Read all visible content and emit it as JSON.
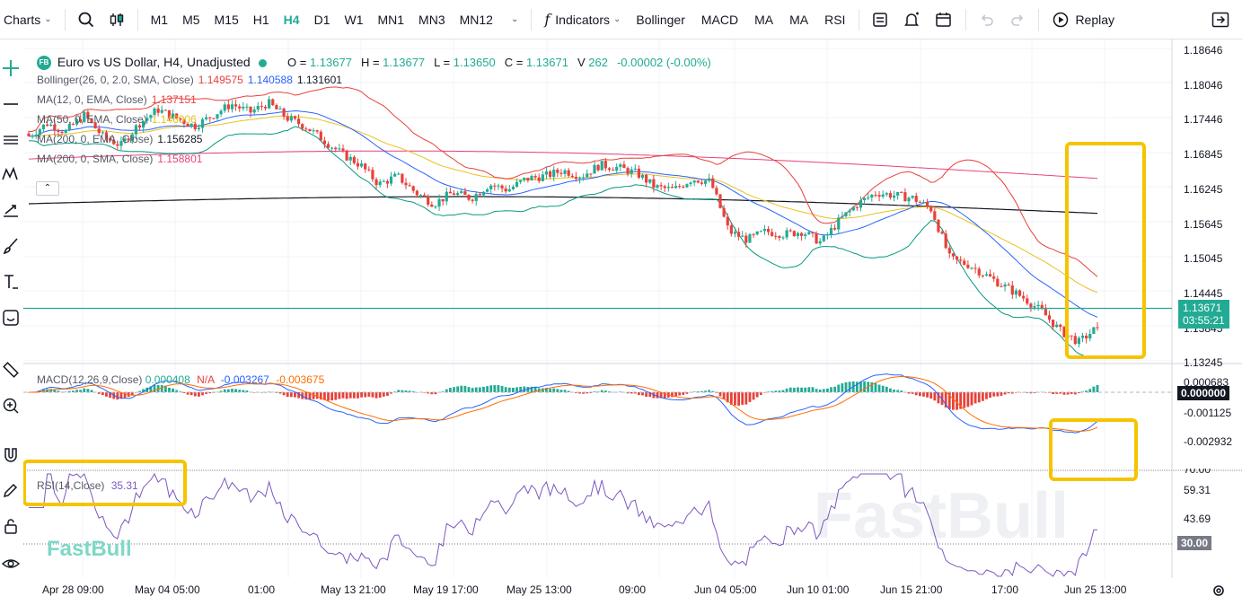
{
  "toolbar": {
    "charts_label": "Charts",
    "timeframes": [
      "M1",
      "M5",
      "M15",
      "H1",
      "H4",
      "D1",
      "W1",
      "MN1",
      "MN3",
      "MN12"
    ],
    "active_timeframe": "H4",
    "indicators_label": "Indicators",
    "indicator_shortcuts": [
      "Bollinger",
      "MACD",
      "MA",
      "MA",
      "RSI"
    ],
    "replay_label": "Replay"
  },
  "symbol": {
    "badge": "FB",
    "title": "Euro vs US Dollar, H4, Unadjusted",
    "ohlc": [
      {
        "label": "O =",
        "value": "1.13677"
      },
      {
        "label": "H =",
        "value": "1.13677"
      },
      {
        "label": "L =",
        "value": "1.13650"
      },
      {
        "label": "C =",
        "value": "1.13671"
      },
      {
        "label": "V",
        "value": "262"
      }
    ],
    "change": "-0.00002 (-0.00%)"
  },
  "indicators": [
    {
      "name": "Bollinger(26, 0, 2.0, SMA, Close)",
      "values": [
        "1.149575",
        "1.140588",
        "1.131601"
      ],
      "colors": [
        "#e8413a",
        "#2962ff",
        "#131722"
      ]
    },
    {
      "name": "MA(12, 0, EMA, Close)",
      "values": [
        "1.137151"
      ],
      "colors": [
        "#e8413a"
      ]
    },
    {
      "name": "MA(50, 0, EMA, Close)",
      "values": [
        "1.146006"
      ],
      "colors": [
        "#e8c21f"
      ]
    },
    {
      "name": "MA(200, 0, EMA, Close)",
      "values": [
        "1.156285"
      ],
      "colors": [
        "#131722"
      ]
    },
    {
      "name": "MA(200, 0, SMA, Close)",
      "values": [
        "1.158801"
      ],
      "colors": [
        "#e8417a"
      ]
    }
  ],
  "macd": {
    "name": "MACD(12,26,9,Close)",
    "values": [
      "0.000408",
      "N/A",
      "-0.003267",
      "-0.003675"
    ]
  },
  "rsi": {
    "name": "RSI(14,Close)",
    "value": "35.31"
  },
  "price_axis": [
    "1.18646",
    "1.18046",
    "1.17446",
    "1.16845",
    "1.16245",
    "1.15645",
    "1.15045",
    "1.14445",
    "1.13845",
    "1.13245"
  ],
  "price_tag": {
    "price": "1.13671",
    "countdown": "03:55:21"
  },
  "macd_axis": [
    "0.000683",
    "-0.001125",
    "-0.002932"
  ],
  "macd_tag": "0.000000",
  "rsi_axis": [
    "70.00",
    "59.31",
    "43.69"
  ],
  "rsi_tag": "30.00",
  "time_axis": [
    "Apr 28 09:00",
    "May 04 05:00",
    "01:00",
    "May 13 21:00",
    "May 19 17:00",
    "May 25 13:00",
    "09:00",
    "Jun 04 05:00",
    "Jun 10 01:00",
    "Jun 15 21:00",
    "17:00",
    "Jun 25 13:00"
  ],
  "watermark": "FastBull",
  "colors": {
    "up": "#22ab94",
    "down": "#e8413a",
    "accent": "#22ab94",
    "highlight_box": "#f5c400",
    "rsi_line": "#7e57c2"
  },
  "chart_data": {
    "type": "candlestick",
    "symbol": "EURUSD",
    "timeframe": "H4",
    "ylim": [
      1.1295,
      1.188
    ],
    "last_close": 1.13671,
    "close_path": [
      1.1712,
      1.1735,
      1.172,
      1.175,
      1.1712,
      1.1695,
      1.1735,
      1.176,
      1.1745,
      1.173,
      1.175,
      1.177,
      1.1755,
      1.1772,
      1.1745,
      1.173,
      1.1705,
      1.168,
      1.166,
      1.1625,
      1.164,
      1.161,
      1.159,
      1.161,
      1.16,
      1.1625,
      1.1615,
      1.1635,
      1.164,
      1.165,
      1.164,
      1.166,
      1.1655,
      1.1645,
      1.162,
      1.1615,
      1.1635,
      1.163,
      1.154,
      1.1525,
      1.154,
      1.1535,
      1.154,
      1.152,
      1.156,
      1.159,
      1.161,
      1.1605,
      1.16,
      1.158,
      1.149,
      1.148,
      1.146,
      1.144,
      1.142,
      1.1395,
      1.136,
      1.134,
      1.1367
    ]
  }
}
